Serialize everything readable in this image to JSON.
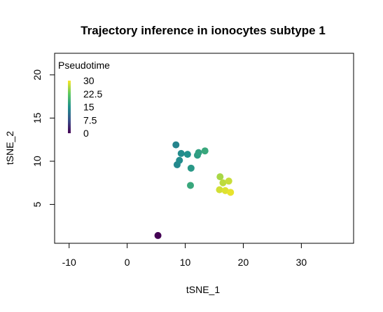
{
  "chart_data": {
    "type": "scatter",
    "title": "Trajectory inference in ionocytes subtype 1",
    "xlabel": "tSNE_1",
    "ylabel": "tSNE_2",
    "xlim": [
      -12.5,
      39
    ],
    "ylim": [
      0.5,
      22.5
    ],
    "xticks": [
      -10,
      0,
      10,
      20,
      30
    ],
    "yticks": [
      5,
      10,
      15,
      20
    ],
    "grid": false,
    "legend": {
      "title": "Pseudotime",
      "placement": "top-left",
      "labels": [
        "30",
        "22.5",
        "15",
        "7.5",
        "0"
      ],
      "range": [
        0,
        30
      ]
    },
    "colormap": "viridis",
    "points": [
      {
        "x": 5.3,
        "y": 1.4,
        "pseudotime": 0
      },
      {
        "x": 8.4,
        "y": 11.9,
        "pseudotime": 13.5
      },
      {
        "x": 9.3,
        "y": 10.9,
        "pseudotime": 14.5
      },
      {
        "x": 10.4,
        "y": 10.8,
        "pseudotime": 15
      },
      {
        "x": 8.6,
        "y": 9.6,
        "pseudotime": 14
      },
      {
        "x": 9.0,
        "y": 10.1,
        "pseudotime": 14.5
      },
      {
        "x": 11.0,
        "y": 9.2,
        "pseudotime": 16
      },
      {
        "x": 12.1,
        "y": 10.7,
        "pseudotime": 16.5
      },
      {
        "x": 12.3,
        "y": 11.0,
        "pseudotime": 17
      },
      {
        "x": 13.4,
        "y": 11.2,
        "pseudotime": 18
      },
      {
        "x": 10.9,
        "y": 7.2,
        "pseudotime": 18
      },
      {
        "x": 16.0,
        "y": 8.2,
        "pseudotime": 26
      },
      {
        "x": 16.5,
        "y": 7.5,
        "pseudotime": 27
      },
      {
        "x": 17.5,
        "y": 7.7,
        "pseudotime": 27.5
      },
      {
        "x": 15.9,
        "y": 6.7,
        "pseudotime": 28
      },
      {
        "x": 16.9,
        "y": 6.6,
        "pseudotime": 28.5
      },
      {
        "x": 17.8,
        "y": 6.4,
        "pseudotime": 29
      }
    ]
  }
}
